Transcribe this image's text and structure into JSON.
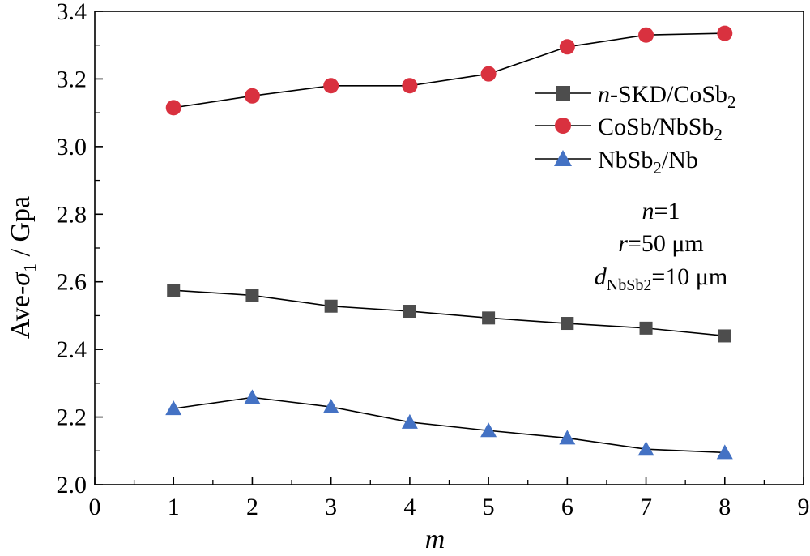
{
  "chart_data": {
    "type": "line",
    "title": "",
    "xlabel": "m",
    "ylabel": "Ave-σ1 / Gpa",
    "xlim": [
      0,
      9
    ],
    "ylim": [
      2.0,
      3.4
    ],
    "x_ticks": [
      "0",
      "1",
      "2",
      "3",
      "4",
      "5",
      "6",
      "7",
      "8",
      "9"
    ],
    "y_ticks": [
      "2.0",
      "2.2",
      "2.4",
      "2.6",
      "2.8",
      "3.0",
      "3.2",
      "3.4"
    ],
    "x": [
      1,
      2,
      3,
      4,
      5,
      6,
      7,
      8
    ],
    "series": [
      {
        "name": "n-SKD/CoSb2",
        "marker": "square",
        "color": "#4d4d4d",
        "values": [
          2.575,
          2.56,
          2.528,
          2.513,
          2.493,
          2.477,
          2.463,
          2.44
        ]
      },
      {
        "name": "CoSb/NbSb2",
        "marker": "circle",
        "color": "#d9313f",
        "values": [
          3.115,
          3.15,
          3.18,
          3.18,
          3.215,
          3.295,
          3.33,
          3.335
        ]
      },
      {
        "name": "NbSb2/Nb",
        "marker": "triangle",
        "color": "#4472c4",
        "values": [
          2.225,
          2.258,
          2.23,
          2.185,
          2.16,
          2.138,
          2.105,
          2.095
        ]
      }
    ],
    "legend": {
      "placement": "top-right",
      "entries": [
        {
          "prefix": "n",
          "main": "-SKD/CoSb",
          "sub": "2",
          "suffix": ""
        },
        {
          "prefix": "",
          "main": "CoSb/NbSb",
          "sub": "2",
          "suffix": ""
        },
        {
          "prefix": "",
          "main": "NbSb",
          "sub": "2",
          "suffix": "/Nb"
        }
      ]
    },
    "annotations": {
      "n_line": {
        "var": "n",
        "text": "=1"
      },
      "r_line": {
        "var": "r",
        "text": "=50 μm"
      },
      "d_line": {
        "var": "d",
        "sub": "NbSb2",
        "text": "=10 μm"
      }
    },
    "ylabel_parts": {
      "pre": "Ave-",
      "sym": "σ",
      "sub": "1",
      "post": " / Gpa"
    },
    "line_color": "#000000"
  }
}
